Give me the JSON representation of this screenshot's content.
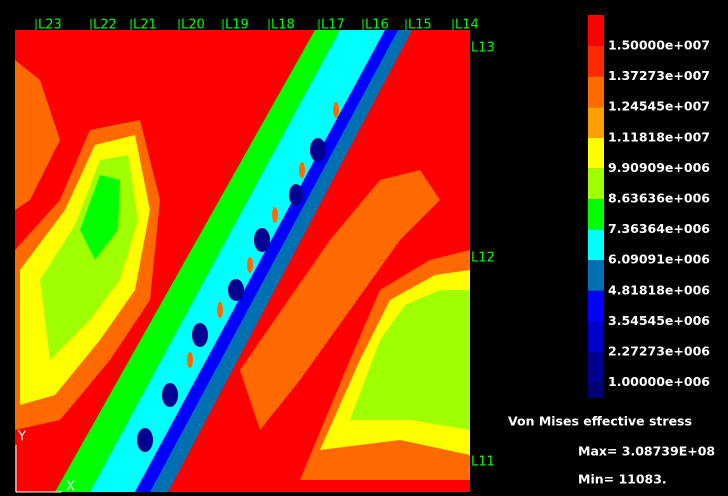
{
  "top_labels": [
    "L23",
    "L22",
    "L21",
    "L20",
    "L19",
    "L18",
    "L17",
    "L16",
    "L15",
    "L14"
  ],
  "right_labels": [
    "L13",
    "L12",
    "L11"
  ],
  "axes": {
    "y": "Y",
    "x": "X"
  },
  "legend": {
    "colors": [
      "#ff0000",
      "#ff2a00",
      "#ff6a00",
      "#ffa000",
      "#ffff00",
      "#a0ff00",
      "#00ff00",
      "#00ffff",
      "#0070b0",
      "#0000ff",
      "#0000c8",
      "#000090",
      "#000070"
    ],
    "labels": [
      "1.50000e+007",
      "1.37273e+007",
      "1.24545e+007",
      "1.11818e+007",
      "9.90909e+006",
      "8.63636e+006",
      "7.36364e+006",
      "6.09091e+006",
      "4.81818e+006",
      "3.54545e+006",
      "2.27273e+006",
      "1.00000e+006"
    ]
  },
  "title": "Von Mises effective stress",
  "max": "Max= 3.08739E+08",
  "min": "Min= 11083."
}
